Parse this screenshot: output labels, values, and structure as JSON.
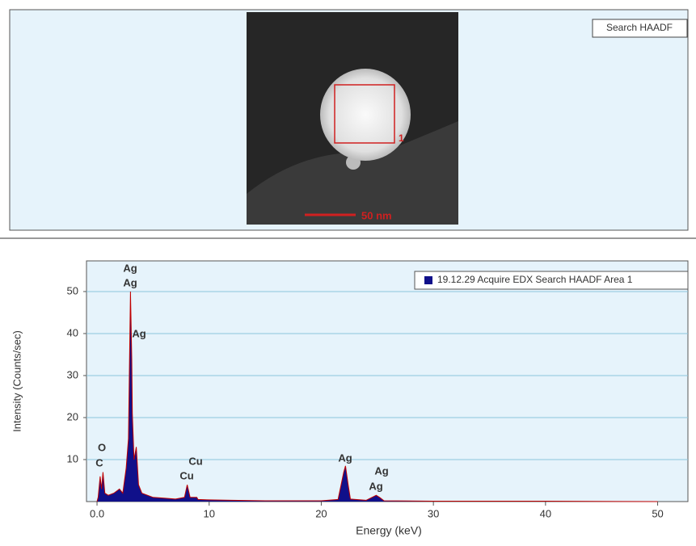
{
  "image_panel": {
    "button": "Search HAADF",
    "roi_label": "1",
    "scale_bar": "50 nm"
  },
  "chart_data": {
    "type": "area",
    "x_label": "Energy (keV)",
    "y_label": "Intensity (Counts/sec)",
    "x": [
      0,
      0.1,
      0.28,
      0.4,
      0.53,
      0.7,
      1,
      1.5,
      2,
      2.3,
      2.6,
      2.8,
      2.98,
      3.1,
      3.15,
      3.3,
      3.5,
      3.7,
      4,
      5,
      6,
      7,
      7.8,
      8.04,
      8.3,
      8.9,
      9,
      10,
      12,
      15,
      20,
      21.5,
      22,
      22.16,
      22.4,
      22.6,
      24,
      24.9,
      25.2,
      25.6,
      30,
      40,
      50
    ],
    "series": [
      {
        "name": "19.12.29 Acquire EDX Search HAADF Area 1",
        "color": "#10108a",
        "line_color": "#c00000",
        "values": [
          0,
          1,
          6,
          3,
          7,
          2,
          1.5,
          2,
          3,
          2,
          8,
          15,
          50,
          34,
          21,
          10,
          13,
          4,
          2,
          1,
          0.8,
          0.6,
          1,
          4,
          1,
          1,
          0.5,
          0.4,
          0.3,
          0.2,
          0.2,
          0.5,
          7,
          8.5,
          4,
          0.6,
          0.3,
          1.5,
          1,
          0.2,
          0.1,
          0.1,
          0
        ]
      }
    ],
    "annotations": [
      "Ag",
      "Ag",
      "Ag",
      "O",
      "C",
      "Cu",
      "Cu",
      "Ag",
      "Ag",
      "Ag"
    ],
    "xlim": [
      -0.94,
      52.7
    ],
    "xticks": [
      {
        "value": 0,
        "label": "0.0"
      },
      10,
      20,
      30,
      40,
      50
    ],
    "ylim": [
      0,
      57.3
    ],
    "yticks": [
      10,
      20,
      30,
      40,
      50
    ],
    "grid": true
  }
}
